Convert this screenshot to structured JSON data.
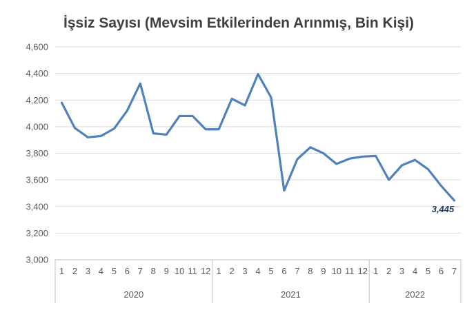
{
  "chart_data": {
    "type": "line",
    "title": "İşsiz Sayısı (Mevsim Etkilerinden Arınmış, Bin Kişi)",
    "xlabel": "",
    "ylabel": "",
    "ylim": [
      3000,
      4600
    ],
    "y_ticks": [
      "3,000",
      "3,200",
      "3,400",
      "3,600",
      "3,800",
      "4,000",
      "4,200",
      "4,400",
      "4,600"
    ],
    "y_tick_values": [
      3000,
      3200,
      3400,
      3600,
      3800,
      4000,
      4200,
      4400,
      4600
    ],
    "grid": true,
    "legend": "none",
    "categories": [
      "1",
      "2",
      "3",
      "4",
      "5",
      "6",
      "7",
      "8",
      "9",
      "10",
      "11",
      "12",
      "1",
      "2",
      "3",
      "4",
      "5",
      "6",
      "7",
      "8",
      "9",
      "10",
      "11",
      "12",
      "1",
      "2",
      "3",
      "4",
      "5",
      "6",
      "7"
    ],
    "groups": [
      {
        "label": "2020",
        "count": 12
      },
      {
        "label": "2021",
        "count": 12
      },
      {
        "label": "2022",
        "count": 7
      }
    ],
    "series": [
      {
        "values": [
          4180,
          3990,
          3920,
          3930,
          3985,
          4120,
          4325,
          3950,
          3940,
          4080,
          4080,
          3980,
          3980,
          4210,
          4160,
          4395,
          4220,
          3520,
          3755,
          3845,
          3800,
          3720,
          3760,
          3775,
          3780,
          3600,
          3710,
          3750,
          3680,
          3555,
          3445
        ],
        "color": "#4f81bd"
      }
    ],
    "data_labels": [
      {
        "index": 30,
        "text": "3,445"
      }
    ]
  }
}
